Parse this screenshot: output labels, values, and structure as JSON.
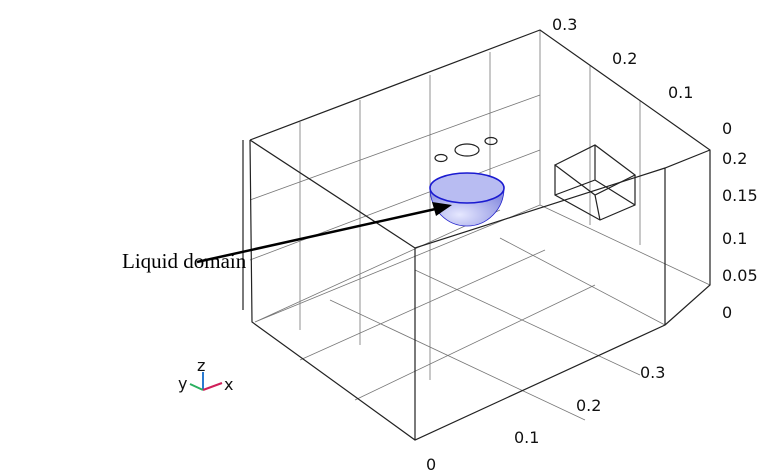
{
  "annotation": "Liquid domain",
  "axes": {
    "y_ticks": [
      "0.3",
      "0.2",
      "0.1",
      "0"
    ],
    "z_ticks": [
      "0.2",
      "0.15",
      "0.1",
      "0.05",
      "0"
    ],
    "x_ticks": [
      "0.3",
      "0.2",
      "0.1",
      "0"
    ]
  },
  "triad": {
    "y": "y",
    "z": "z",
    "x": "x"
  }
}
